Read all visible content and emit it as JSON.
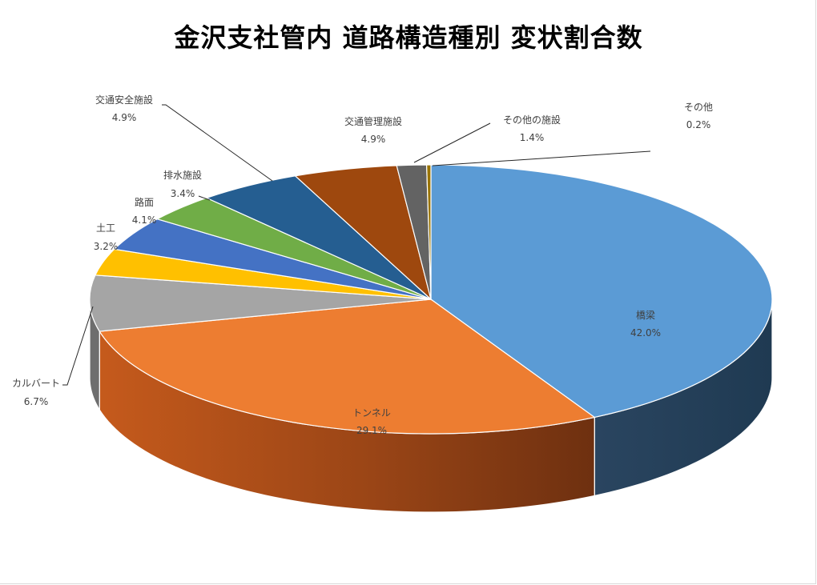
{
  "chart_data": {
    "type": "pie",
    "title": "金沢支社管内 道路構造種別 変状割合数",
    "categories": [
      "橋梁",
      "トンネル",
      "カルバート",
      "土工",
      "路面",
      "排水施設",
      "交通安全施設",
      "交通管理施設",
      "その他の施設",
      "その他"
    ],
    "values": [
      42.0,
      29.1,
      6.7,
      3.2,
      4.1,
      3.4,
      4.9,
      4.9,
      1.4,
      0.2
    ],
    "value_labels": [
      "42.0%",
      "29.1%",
      "6.7%",
      "3.2%",
      "4.1%",
      "3.4%",
      "4.9%",
      "4.9%",
      "1.4%",
      "0.2%"
    ],
    "colors": [
      "#5b9bd5",
      "#ed7d31",
      "#a5a5a5",
      "#ffc000",
      "#4472c4",
      "#70ad47",
      "#255e91",
      "#9e480e",
      "#636363",
      "#997300"
    ],
    "style": "3d",
    "legend": "none"
  }
}
